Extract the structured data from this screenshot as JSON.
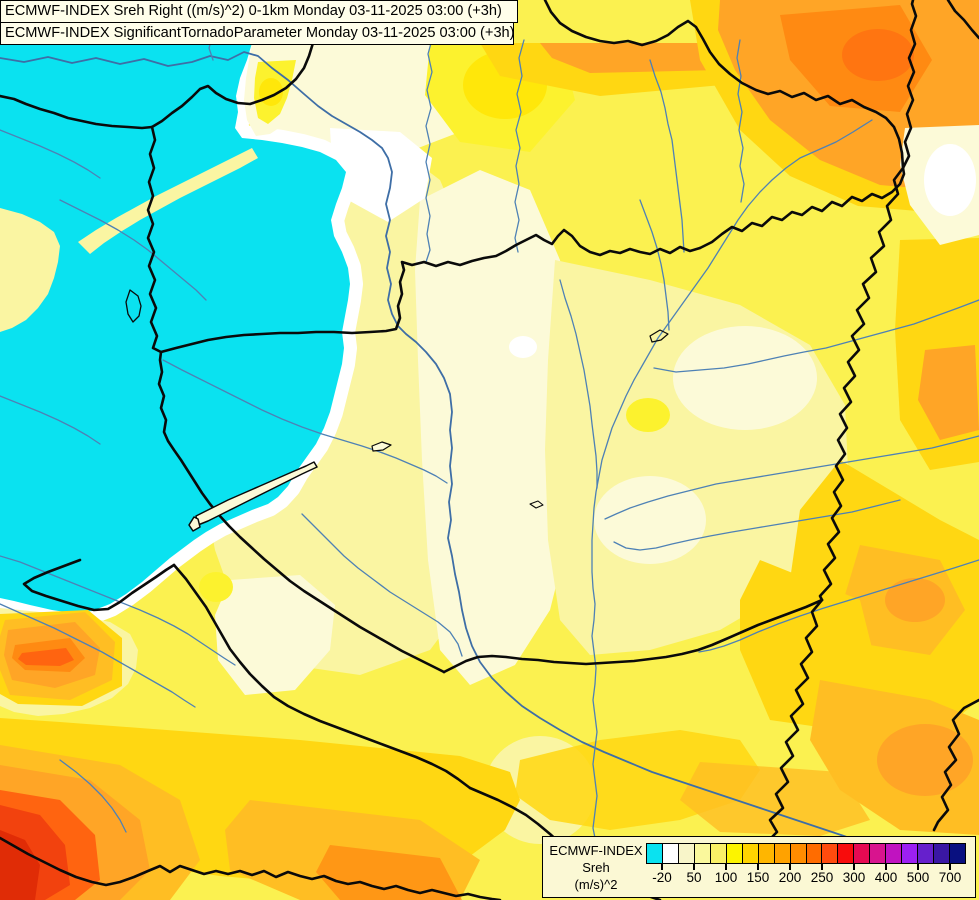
{
  "titles": {
    "line1": "ECMWF-INDEX Sreh Right ((m/s)^2) 0-1km Monday 03-11-2025 03:00 (+3h)",
    "line2": "ECMWF-INDEX SignificantTornadoParameter Monday 03-11-2025 03:00 (+3h)"
  },
  "legend": {
    "title": "ECMWF-INDEX",
    "subtitle": "Sreh",
    "units": "(m/s)^2",
    "segments": [
      "#0AE2F0",
      "#FFFFFF",
      "#F8F5C9",
      "#FAF89C",
      "#FAF066",
      "#FCF400",
      "#FFD400",
      "#FFB600",
      "#FFA200",
      "#FF8C00",
      "#FF6C00",
      "#FF4B0E",
      "#F80C0C",
      "#E60A52",
      "#D8148E",
      "#C013C0",
      "#9C20F2",
      "#6620CC",
      "#3A17A4",
      "#091080"
    ],
    "ticks": [
      {
        "label": "-20",
        "boundary": 1
      },
      {
        "label": "50",
        "boundary": 3
      },
      {
        "label": "100",
        "boundary": 5
      },
      {
        "label": "150",
        "boundary": 7
      },
      {
        "label": "200",
        "boundary": 9
      },
      {
        "label": "250",
        "boundary": 11
      },
      {
        "label": "300",
        "boundary": 13
      },
      {
        "label": "400",
        "boundary": 15
      },
      {
        "label": "500",
        "boundary": 17
      },
      {
        "label": "700",
        "boundary": 19
      }
    ]
  },
  "palette": {
    "bg": "#FBF150",
    "cyan": "#0AE2F0",
    "white": "#FFFFFF",
    "cream": "#FCFAD8",
    "paleYellow": "#FAF5A2",
    "brightYellow": "#FCF22E",
    "vividYellow": "#FFE70A",
    "gold": "#FFD712",
    "amber": "#FFBE23",
    "orange": "#FFA526",
    "deepOrange": "#FF8A12",
    "redOrange": "#FF6410",
    "red": "#F2420E",
    "darkRed": "#E02C06",
    "river": "#4E81B5",
    "riverDark": "#3E6EA6",
    "borderColor": "#0A0A0A",
    "lakeFill": "#FCFAD8",
    "titleBg": "#FFFEEA",
    "legendBg": "#FBF8D4"
  }
}
